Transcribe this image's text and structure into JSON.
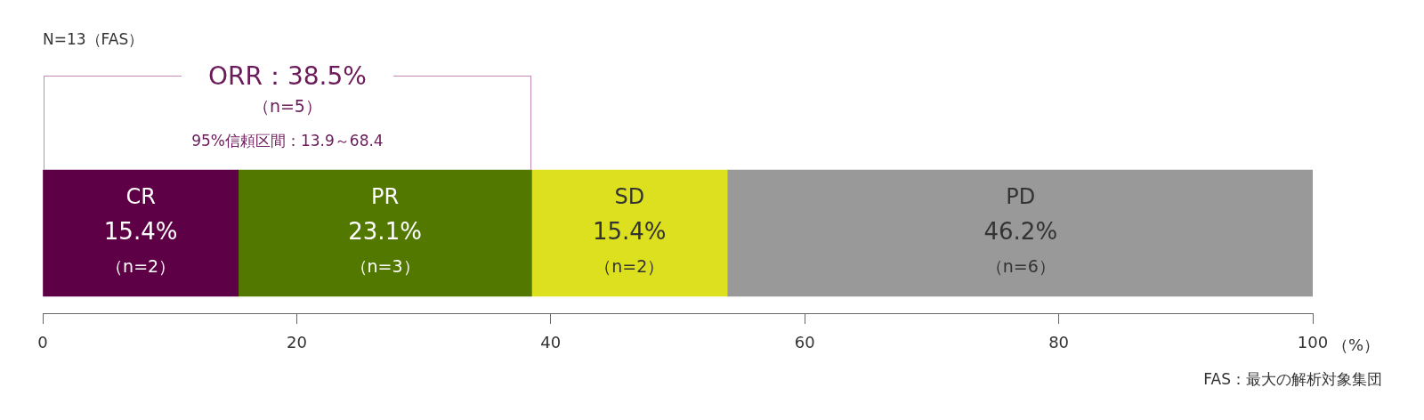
{
  "chart_data": {
    "type": "bar",
    "orientation": "horizontal",
    "stacked": true,
    "categories": [
      null
    ],
    "xlabel": "（%）",
    "xlim": [
      0,
      100
    ],
    "xticks": [
      0,
      20,
      40,
      60,
      80,
      100
    ],
    "series": [
      {
        "name": "CR",
        "color": "#5e0045",
        "values": [
          15.4
        ],
        "value_labels": [
          "15.4%\n（n=2）"
        ]
      },
      {
        "name": "PR",
        "color": "#527800",
        "values": [
          23.1
        ],
        "value_labels": [
          "23.1%\n（n=3）"
        ]
      },
      {
        "name": "SD",
        "color": "#dce01e",
        "values": [
          15.4
        ],
        "value_labels": [
          "15.4%\n（n=2）"
        ]
      },
      {
        "name": "PD",
        "color": "#999999",
        "values": [
          46.2
        ],
        "value_labels": [
          "46.2%\n（n=6）"
        ]
      }
    ],
    "annotations": [
      "N=13（FAS）",
      "ORR：38.5%",
      "（n=5）",
      "95%信頼区間：13.9～68.4",
      "FAS：最大の解析対象集団"
    ]
  }
}
